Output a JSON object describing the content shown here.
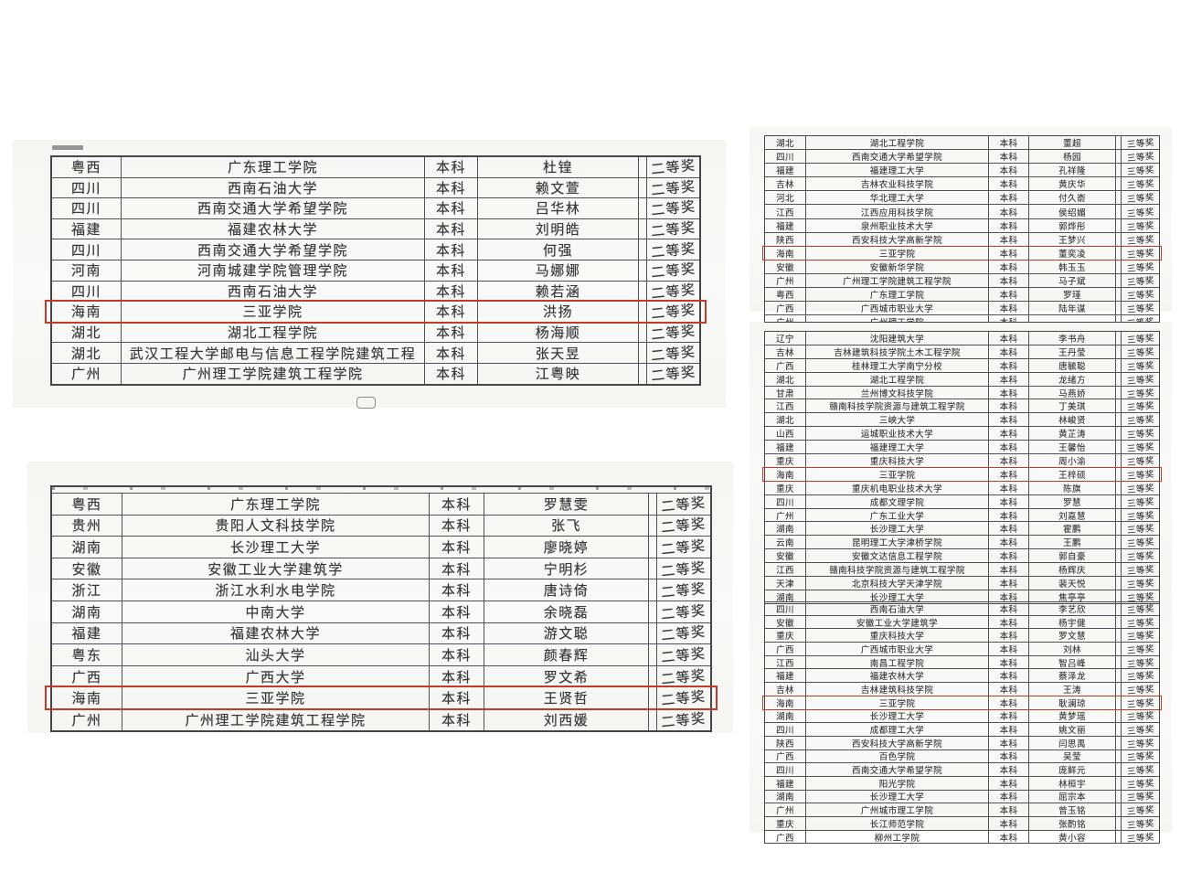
{
  "colors": {
    "highlight_box": "#c13a2c",
    "table_border": "#4a4a4e",
    "text": "#38383b",
    "paper": "#f7f7f4",
    "page_background": "#ffffff"
  },
  "tables": [
    {
      "id": "t1",
      "label": "second-prize-list-1",
      "rows": [
        {
          "province": "粤西",
          "school": "广东理工学院",
          "degree": "本科",
          "name": "杜锽",
          "award": "二等奖",
          "highlight": false
        },
        {
          "province": "四川",
          "school": "西南石油大学",
          "degree": "本科",
          "name": "赖文萱",
          "award": "二等奖",
          "highlight": false
        },
        {
          "province": "四川",
          "school": "西南交通大学希望学院",
          "degree": "本科",
          "name": "吕华林",
          "award": "二等奖",
          "highlight": false
        },
        {
          "province": "福建",
          "school": "福建农林大学",
          "degree": "本科",
          "name": "刘明皓",
          "award": "二等奖",
          "highlight": false
        },
        {
          "province": "四川",
          "school": "西南交通大学希望学院",
          "degree": "本科",
          "name": "何强",
          "award": "二等奖",
          "highlight": false
        },
        {
          "province": "河南",
          "school": "河南城建学院管理学院",
          "degree": "本科",
          "name": "马娜娜",
          "award": "二等奖",
          "highlight": false
        },
        {
          "province": "四川",
          "school": "西南石油大学",
          "degree": "本科",
          "name": "赖若涵",
          "award": "二等奖",
          "highlight": false
        },
        {
          "province": "海南",
          "school": "三亚学院",
          "degree": "本科",
          "name": "洪扬",
          "award": "二等奖",
          "highlight": true
        },
        {
          "province": "湖北",
          "school": "湖北工程学院",
          "degree": "本科",
          "name": "杨海顺",
          "award": "二等奖",
          "highlight": false
        },
        {
          "province": "湖北",
          "school": "武汉工程大学邮电与信息工程学院建筑工程",
          "degree": "本科",
          "name": "张天昱",
          "award": "二等奖",
          "highlight": false
        },
        {
          "province": "广州",
          "school": "广州理工学院建筑工程学院",
          "degree": "本科",
          "name": "江粤映",
          "award": "二等奖",
          "highlight": false
        }
      ]
    },
    {
      "id": "t2",
      "label": "second-prize-list-2",
      "partial_top": true,
      "rows": [
        {
          "province": "粤西",
          "school": "广东理工学院",
          "degree": "本科",
          "name": "罗慧雯",
          "award": "二等奖",
          "highlight": false
        },
        {
          "province": "贵州",
          "school": "贵阳人文科技学院",
          "degree": "本科",
          "name": "张飞",
          "award": "二等奖",
          "highlight": false
        },
        {
          "province": "湖南",
          "school": "长沙理工大学",
          "degree": "本科",
          "name": "廖晓婷",
          "award": "二等奖",
          "highlight": false
        },
        {
          "province": "安徽",
          "school": "安徽工业大学建筑学",
          "degree": "本科",
          "name": "宁明杉",
          "award": "二等奖",
          "highlight": false
        },
        {
          "province": "浙江",
          "school": "浙江水利水电学院",
          "degree": "本科",
          "name": "唐诗倚",
          "award": "二等奖",
          "highlight": false
        },
        {
          "province": "湖南",
          "school": "中南大学",
          "degree": "本科",
          "name": "余晓磊",
          "award": "二等奖",
          "highlight": false
        },
        {
          "province": "福建",
          "school": "福建农林大学",
          "degree": "本科",
          "name": "游文聪",
          "award": "二等奖",
          "highlight": false
        },
        {
          "province": "粤东",
          "school": "汕头大学",
          "degree": "本科",
          "name": "颜春辉",
          "award": "二等奖",
          "highlight": false
        },
        {
          "province": "广西",
          "school": "广西大学",
          "degree": "本科",
          "name": "罗文希",
          "award": "二等奖",
          "highlight": false
        },
        {
          "province": "海南",
          "school": "三亚学院",
          "degree": "本科",
          "name": "王贤哲",
          "award": "二等奖",
          "highlight": true
        },
        {
          "province": "广州",
          "school": "广州理工学院建筑工程学院",
          "degree": "本科",
          "name": "刘西媛",
          "award": "二等奖",
          "highlight": false
        }
      ]
    },
    {
      "id": "t3",
      "label": "third-prize-list-1",
      "rows": [
        {
          "province": "湖北",
          "school": "湖北工程学院",
          "degree": "本科",
          "name": "董超",
          "award": "三等奖",
          "highlight": false
        },
        {
          "province": "四川",
          "school": "西南交通大学希望学院",
          "degree": "本科",
          "name": "杨园",
          "award": "三等奖",
          "highlight": false
        },
        {
          "province": "福建",
          "school": "福建理工大学",
          "degree": "本科",
          "name": "孔祥隆",
          "award": "三等奖",
          "highlight": false
        },
        {
          "province": "吉林",
          "school": "吉林农业科技学院",
          "degree": "本科",
          "name": "黄庆华",
          "award": "三等奖",
          "highlight": false
        },
        {
          "province": "河北",
          "school": "华北理工大学",
          "degree": "本科",
          "name": "付久嵛",
          "award": "三等奖",
          "highlight": false
        },
        {
          "province": "江西",
          "school": "江西应用科技学院",
          "degree": "本科",
          "name": "侯绍媚",
          "award": "三等奖",
          "highlight": false
        },
        {
          "province": "福建",
          "school": "泉州职业技术大学",
          "degree": "本科",
          "name": "郭烨彤",
          "award": "三等奖",
          "highlight": false
        },
        {
          "province": "陕西",
          "school": "西安科技大学高新学院",
          "degree": "本科",
          "name": "王梦兴",
          "award": "三等奖",
          "highlight": false
        },
        {
          "province": "海南",
          "school": "三亚学院",
          "degree": "本科",
          "name": "董奕凌",
          "award": "三等奖",
          "highlight": true
        },
        {
          "province": "安徽",
          "school": "安徽新华学院",
          "degree": "本科",
          "name": "韩玉玉",
          "award": "三等奖",
          "highlight": false
        },
        {
          "province": "广州",
          "school": "广州理工学院建筑工程学院",
          "degree": "本科",
          "name": "马子斌",
          "award": "三等奖",
          "highlight": false
        },
        {
          "province": "粤西",
          "school": "广东理工学院",
          "degree": "本科",
          "name": "罗瑾",
          "award": "三等奖",
          "highlight": false
        },
        {
          "province": "广西",
          "school": "广西城市职业大学",
          "degree": "本科",
          "name": "陆年谋",
          "award": "三等奖",
          "highlight": false
        }
      ],
      "partial_row": {
        "province": "广州",
        "school": "广州理工学院",
        "degree": "本科",
        "name": "",
        "award": "三等奖",
        "highlight": false
      }
    },
    {
      "id": "t4",
      "label": "third-prize-list-2",
      "rows": [
        {
          "province": "辽宁",
          "school": "沈阳建筑大学",
          "degree": "本科",
          "name": "李书舟",
          "award": "三等奖",
          "highlight": false
        },
        {
          "province": "吉林",
          "school": "吉林建筑科技学院土木工程学院",
          "degree": "本科",
          "name": "王丹莹",
          "award": "三等奖",
          "highlight": false
        },
        {
          "province": "广西",
          "school": "桂林理工大学南宁分校",
          "degree": "本科",
          "name": "唐毓聪",
          "award": "三等奖",
          "highlight": false
        },
        {
          "province": "湖北",
          "school": "湖北工程学院",
          "degree": "本科",
          "name": "龙绪方",
          "award": "三等奖",
          "highlight": false
        },
        {
          "province": "甘肃",
          "school": "兰州博文科技学院",
          "degree": "本科",
          "name": "马燕娇",
          "award": "三等奖",
          "highlight": false
        },
        {
          "province": "江西",
          "school": "赣南科技学院资源与建筑工程学院",
          "degree": "本科",
          "name": "丁美琪",
          "award": "三等奖",
          "highlight": false
        },
        {
          "province": "湖北",
          "school": "三峡大学",
          "degree": "本科",
          "name": "林峻贤",
          "award": "三等奖",
          "highlight": false
        },
        {
          "province": "山西",
          "school": "运城职业技术大学",
          "degree": "本科",
          "name": "黄芷涛",
          "award": "三等奖",
          "highlight": false
        },
        {
          "province": "福建",
          "school": "福建理工大学",
          "degree": "本科",
          "name": "王馨怡",
          "award": "三等奖",
          "highlight": false
        },
        {
          "province": "重庆",
          "school": "重庆科技大学",
          "degree": "本科",
          "name": "周小渝",
          "award": "三等奖",
          "highlight": false
        },
        {
          "province": "海南",
          "school": "三亚学院",
          "degree": "本科",
          "name": "王梓硕",
          "award": "三等奖",
          "highlight": true
        },
        {
          "province": "重庆",
          "school": "重庆机电职业技术大学",
          "degree": "本科",
          "name": "陈旗",
          "award": "三等奖",
          "highlight": false
        },
        {
          "province": "四川",
          "school": "成都文理学院",
          "degree": "本科",
          "name": "罗慧",
          "award": "三等奖",
          "highlight": false
        },
        {
          "province": "广州",
          "school": "广东工业大学",
          "degree": "本科",
          "name": "刘嘉慧",
          "award": "三等奖",
          "highlight": false
        },
        {
          "province": "湖南",
          "school": "长沙理工大学",
          "degree": "本科",
          "name": "霍鹏",
          "award": "三等奖",
          "highlight": false
        },
        {
          "province": "云南",
          "school": "昆明理工大学津桥学院",
          "degree": "本科",
          "name": "王鹏",
          "award": "三等奖",
          "highlight": false
        },
        {
          "province": "安徽",
          "school": "安徽文达信息工程学院",
          "degree": "本科",
          "name": "郭自豪",
          "award": "三等奖",
          "highlight": false
        },
        {
          "province": "江西",
          "school": "赣南科技学院资源与建筑工程学院",
          "degree": "本科",
          "name": "杨辉庆",
          "award": "三等奖",
          "highlight": false
        },
        {
          "province": "天津",
          "school": "北京科技大学天津学院",
          "degree": "本科",
          "name": "裴天悦",
          "award": "三等奖",
          "highlight": false
        },
        {
          "province": "湖南",
          "school": "长沙理工大学",
          "degree": "本科",
          "name": "焦亭亭",
          "award": "三等奖",
          "highlight": false
        }
      ]
    },
    {
      "id": "t5",
      "label": "third-prize-list-3",
      "rows": [
        {
          "province": "四川",
          "school": "西南石油大学",
          "degree": "本科",
          "name": "李艺欣",
          "award": "三等奖",
          "highlight": false
        },
        {
          "province": "安徽",
          "school": "安徽工业大学建筑学",
          "degree": "本科",
          "name": "杨宇健",
          "award": "三等奖",
          "highlight": false
        },
        {
          "province": "重庆",
          "school": "重庆科技大学",
          "degree": "本科",
          "name": "罗文慧",
          "award": "三等奖",
          "highlight": false
        },
        {
          "province": "广西",
          "school": "广西城市职业大学",
          "degree": "本科",
          "name": "刘林",
          "award": "三等奖",
          "highlight": false
        },
        {
          "province": "江西",
          "school": "南昌工程学院",
          "degree": "本科",
          "name": "智吕峰",
          "award": "三等奖",
          "highlight": false
        },
        {
          "province": "福建",
          "school": "福建农林大学",
          "degree": "本科",
          "name": "蔡泽龙",
          "award": "三等奖",
          "highlight": false
        },
        {
          "province": "吉林",
          "school": "吉林建筑科技学院",
          "degree": "本科",
          "name": "王涛",
          "award": "三等奖",
          "highlight": false
        },
        {
          "province": "海南",
          "school": "三亚学院",
          "degree": "本科",
          "name": "耿澜琼",
          "award": "三等奖",
          "highlight": true
        },
        {
          "province": "湖南",
          "school": "长沙理工大学",
          "degree": "本科",
          "name": "黄梦瑶",
          "award": "三等奖",
          "highlight": false
        },
        {
          "province": "四川",
          "school": "成都理工大学",
          "degree": "本科",
          "name": "姚文丽",
          "award": "三等奖",
          "highlight": false
        },
        {
          "province": "陕西",
          "school": "西安科技大学高新学院",
          "degree": "本科",
          "name": "闫思禹",
          "award": "三等奖",
          "highlight": false
        },
        {
          "province": "广西",
          "school": "百色学院",
          "degree": "本科",
          "name": "吴莹",
          "award": "三等奖",
          "highlight": false
        },
        {
          "province": "四川",
          "school": "西南交通大学希望学院",
          "degree": "本科",
          "name": "庞鲜元",
          "award": "三等奖",
          "highlight": false
        },
        {
          "province": "福建",
          "school": "阳光学院",
          "degree": "本科",
          "name": "林桓宇",
          "award": "三等奖",
          "highlight": false
        },
        {
          "province": "湖南",
          "school": "长沙理工大学",
          "degree": "本科",
          "name": "屈宗本",
          "award": "三等奖",
          "highlight": false
        },
        {
          "province": "广州",
          "school": "广州城市理工学院",
          "degree": "本科",
          "name": "曾玉铭",
          "award": "三等奖",
          "highlight": false
        },
        {
          "province": "重庆",
          "school": "长江师范学院",
          "degree": "本科",
          "name": "张酌铭",
          "award": "三等奖",
          "highlight": false
        },
        {
          "province": "广西",
          "school": "柳州工学院",
          "degree": "本科",
          "name": "黄小容",
          "award": "三等奖",
          "highlight": false
        }
      ]
    }
  ]
}
